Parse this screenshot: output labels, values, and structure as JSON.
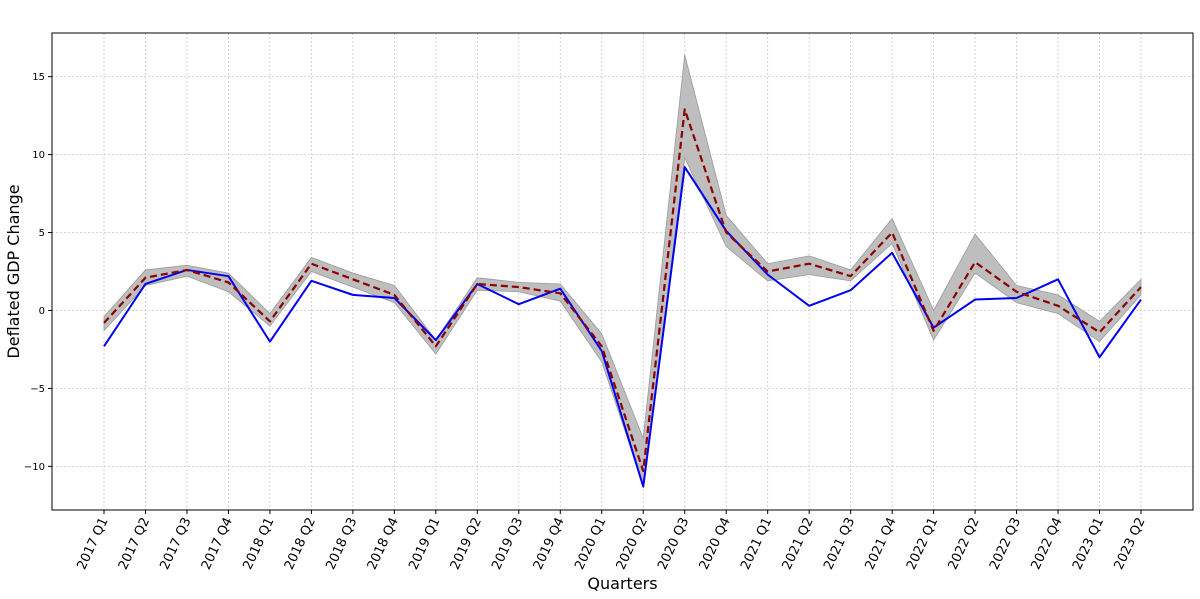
{
  "chart_data": {
    "type": "line",
    "title": "",
    "xlabel": "Quarters",
    "ylabel": "Deflated GDP Change",
    "ylim": [
      -12.8,
      17.8
    ],
    "yticks": [
      -10,
      -5,
      0,
      5,
      10,
      15
    ],
    "grid": true,
    "categories": [
      "2017 Q1",
      "2017 Q2",
      "2017 Q3",
      "2017 Q4",
      "2018 Q1",
      "2018 Q2",
      "2018 Q3",
      "2018 Q4",
      "2019 Q1",
      "2019 Q2",
      "2019 Q3",
      "2019 Q4",
      "2020 Q1",
      "2020 Q2",
      "2020 Q3",
      "2020 Q4",
      "2021 Q1",
      "2021 Q2",
      "2021 Q3",
      "2021 Q4",
      "2022 Q1",
      "2022 Q2",
      "2022 Q3",
      "2022 Q4",
      "2023 Q1",
      "2023 Q2"
    ],
    "series": [
      {
        "style": "solid",
        "color": "#0000ee",
        "values": [
          -2.3,
          1.7,
          2.6,
          2.2,
          -2.0,
          1.9,
          1.0,
          0.8,
          -1.9,
          1.7,
          0.4,
          1.4,
          -2.6,
          -11.3,
          9.2,
          5.1,
          2.3,
          0.3,
          1.3,
          3.7,
          -1.1,
          0.7,
          0.8,
          2.0,
          -3.0,
          0.7
        ]
      },
      {
        "style": "dashed",
        "color": "#8b0000",
        "values": [
          -0.8,
          2.1,
          2.6,
          1.8,
          -0.7,
          3.0,
          2.0,
          1.0,
          -2.3,
          1.7,
          1.5,
          1.1,
          -2.3,
          -10.3,
          12.9,
          5.0,
          2.5,
          3.0,
          2.2,
          5.0,
          -1.3,
          3.1,
          1.2,
          0.3,
          -1.4,
          1.5
        ]
      }
    ],
    "band": {
      "color": "#bebebe",
      "upper": [
        -0.4,
        2.6,
        2.9,
        2.4,
        -0.2,
        3.4,
        2.4,
        1.6,
        -1.9,
        2.1,
        1.8,
        1.7,
        -1.5,
        -8.2,
        16.4,
        6.1,
        3.0,
        3.5,
        2.6,
        5.9,
        0.0,
        4.9,
        1.6,
        1.0,
        -0.7,
        2.0
      ],
      "lower": [
        -1.3,
        1.6,
        2.2,
        1.2,
        -1.0,
        2.5,
        1.5,
        0.5,
        -2.8,
        1.3,
        1.2,
        0.6,
        -3.3,
        -11.2,
        9.8,
        4.1,
        1.9,
        2.3,
        1.9,
        4.3,
        -1.9,
        2.4,
        0.5,
        -0.2,
        -2.0,
        1.0
      ]
    }
  }
}
